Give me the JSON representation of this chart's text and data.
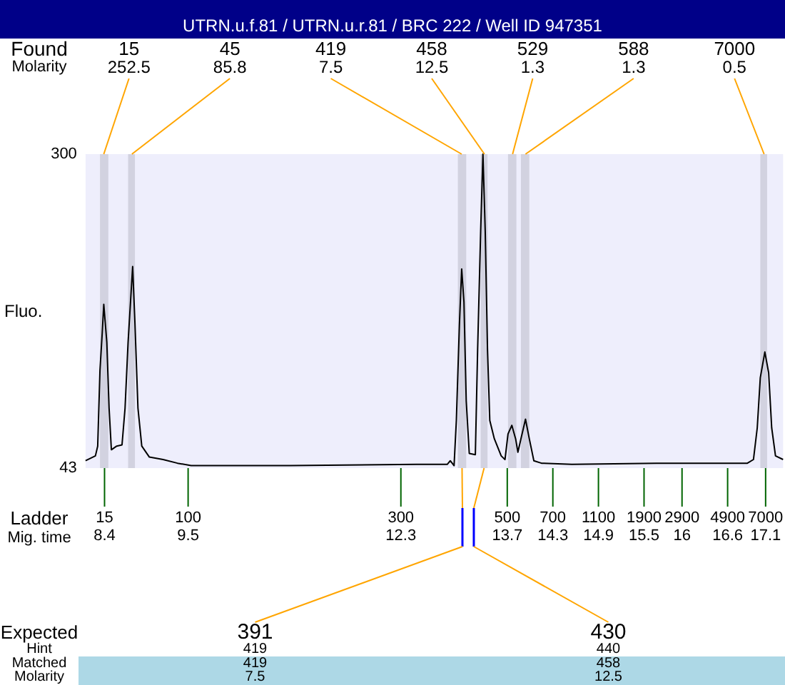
{
  "chart_data": {
    "type": "line",
    "title": "UTRN.u.f.81 / UTRN.u.r.81 / BRC 222 / Well ID 947351",
    "ylabel": "Fluo.",
    "xlabel": "Mig. time",
    "xlim": [
      8.15,
      17.33
    ],
    "xticks": [
      8.4,
      9.5,
      12.3,
      13.7,
      14.3,
      14.9,
      15.5,
      16,
      16.6,
      17.1
    ],
    "ylim": [
      43,
      300
    ],
    "yticks": [
      43,
      300
    ],
    "series": [
      {
        "color": "#000000",
        "x": [
          8.15,
          8.28,
          8.31,
          8.34,
          8.37,
          8.39,
          8.43,
          8.46,
          8.49,
          8.56,
          8.63,
          8.67,
          8.71,
          8.77,
          8.8,
          8.84,
          8.89,
          8.99,
          9.17,
          9.36,
          9.54,
          10.84,
          12.51,
          12.91,
          12.95,
          13,
          13.03,
          13.07,
          13.1,
          13.13,
          13.16,
          13.2,
          13.28,
          13.31,
          13.35,
          13.38,
          13.41,
          13.44,
          13.47,
          13.53,
          13.62,
          13.67,
          13.71,
          13.76,
          13.81,
          13.84,
          13.88,
          13.94,
          13.99,
          14.05,
          14.15,
          14.55,
          15.66,
          16.86,
          16.94,
          16.99,
          17.03,
          17.09,
          17.14,
          17.18,
          17.23,
          17.33
        ],
        "values": [
          49,
          53,
          61,
          123,
          154,
          177,
          146,
          92,
          58,
          61,
          62,
          92,
          146,
          208,
          162,
          92,
          61,
          52,
          50,
          47,
          45,
          45,
          46,
          46,
          49,
          45,
          82,
          160,
          206,
          179,
          98,
          55,
          54,
          140,
          237,
          300,
          237,
          140,
          82,
          67,
          53,
          50,
          71,
          78,
          67,
          56,
          67,
          83,
          67,
          49,
          47,
          46,
          47,
          47,
          50,
          76,
          117,
          138,
          121,
          76,
          53,
          50
        ]
      }
    ],
    "bands": [
      {
        "axis": "x",
        "from": 8.34,
        "to": 8.45,
        "label": "15",
        "color": "#d2d2e0"
      },
      {
        "axis": "x",
        "from": 8.71,
        "to": 8.8,
        "label": "45",
        "color": "#d2d2e0"
      },
      {
        "axis": "x",
        "from": 13.05,
        "to": 13.16,
        "label": "419",
        "color": "#d2d2e0"
      },
      {
        "axis": "x",
        "from": 13.35,
        "to": 13.44,
        "label": "458",
        "color": "#d2d2e0"
      },
      {
        "axis": "x",
        "from": 13.71,
        "to": 13.82,
        "label": "529",
        "color": "#d2d2e0"
      },
      {
        "axis": "x",
        "from": 13.88,
        "to": 13.99,
        "label": "588",
        "color": "#d2d2e0"
      },
      {
        "axis": "x",
        "from": 17.03,
        "to": 17.12,
        "label": "7000",
        "color": "#d2d2e0"
      }
    ],
    "annotations": [
      "Found",
      "Molarity",
      {
        "text": "252.5",
        "x": 8.39,
        "y": 300
      },
      {
        "text": "85.8",
        "x": 8.76,
        "y": 300
      },
      {
        "text": "7.5",
        "x": 13.1,
        "y": 300
      },
      {
        "text": "12.5",
        "x": 13.4,
        "y": 300
      },
      {
        "text": "1.3",
        "x": 13.77,
        "y": 300
      },
      {
        "text": "1.3",
        "x": 13.94,
        "y": 300
      },
      {
        "text": "0.5",
        "x": 17.08,
        "y": 300
      },
      "Ladder",
      {
        "text": "15",
        "x": 8.4,
        "y": 43
      },
      {
        "text": "100",
        "x": 9.5,
        "y": 43
      },
      {
        "text": "300",
        "x": 12.3,
        "y": 43
      },
      {
        "text": "500",
        "x": 13.7,
        "y": 43
      },
      {
        "text": "700",
        "x": 14.3,
        "y": 43
      },
      {
        "text": "1100",
        "x": 14.9,
        "y": 43
      },
      {
        "text": "1900",
        "x": 15.5,
        "y": 43
      },
      {
        "text": "2900",
        "x": 16,
        "y": 43
      },
      {
        "text": "4900",
        "x": 16.6,
        "y": 43
      },
      {
        "text": "7000",
        "x": 17.1,
        "y": 43
      },
      "Expected",
      "Hint",
      "Matched",
      "Molarity",
      {
        "text": "391",
        "x": 13.11
      },
      {
        "text": "430",
        "x": 13.26
      },
      "419",
      "419",
      "7.5",
      "440",
      "458",
      "12.5"
    ]
  }
}
